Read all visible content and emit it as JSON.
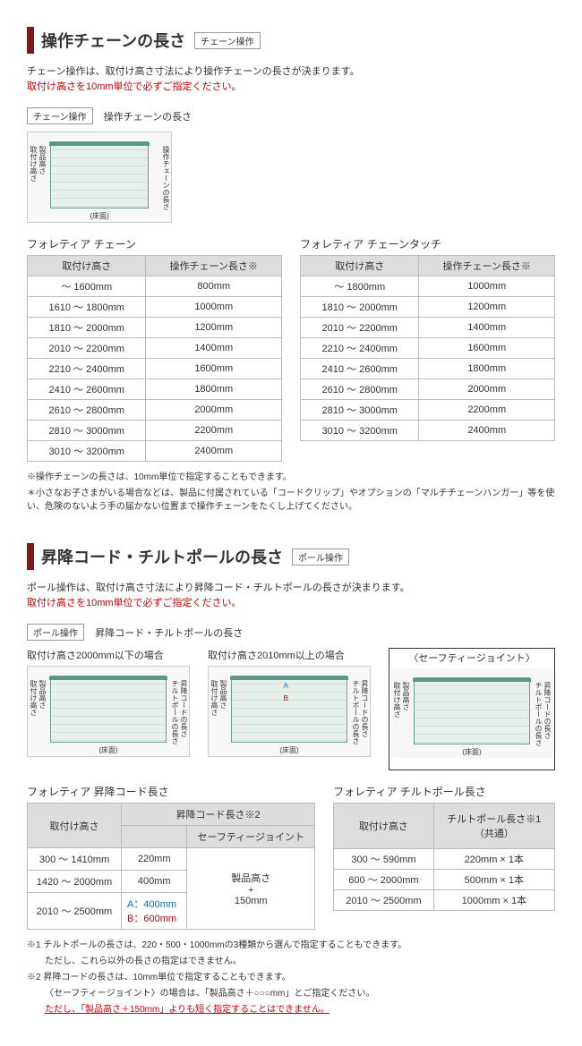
{
  "section1": {
    "title": "操作チェーンの長さ",
    "tag": "チェーン操作",
    "intro1": "チェーン操作は、取付け高さ寸法により操作チェーンの長さが決まります。",
    "intro2": "取付け高さを10mm単位で必ずご指定ください。",
    "sub_tag": "チェーン操作",
    "sub_label": "操作チェーンの長さ",
    "diagram": {
      "left1": "製品高さ",
      "left2": "取付け高さ",
      "right": "操作チェーンの長さ",
      "floor": "(床面)"
    },
    "tableA": {
      "title": "フォレティア チェーン",
      "h1": "取付け高さ",
      "h2": "操作チェーン長さ※",
      "rows": [
        [
          "～ 1600mm",
          "800mm"
        ],
        [
          "1610 ～ 1800mm",
          "1000mm"
        ],
        [
          "1810 ～ 2000mm",
          "1200mm"
        ],
        [
          "2010 ～ 2200mm",
          "1400mm"
        ],
        [
          "2210 ～ 2400mm",
          "1600mm"
        ],
        [
          "2410 ～ 2600mm",
          "1800mm"
        ],
        [
          "2610 ～ 2800mm",
          "2000mm"
        ],
        [
          "2810 ～ 3000mm",
          "2200mm"
        ],
        [
          "3010 ～ 3200mm",
          "2400mm"
        ]
      ]
    },
    "tableB": {
      "title": "フォレティア チェーンタッチ",
      "h1": "取付け高さ",
      "h2": "操作チェーン長さ※",
      "rows": [
        [
          "～ 1800mm",
          "1000mm"
        ],
        [
          "1810 ～ 2000mm",
          "1200mm"
        ],
        [
          "2010 ～ 2200mm",
          "1400mm"
        ],
        [
          "2210 ～ 2400mm",
          "1600mm"
        ],
        [
          "2410 ～ 2600mm",
          "1800mm"
        ],
        [
          "2610 ～ 2800mm",
          "2000mm"
        ],
        [
          "2810 ～ 3000mm",
          "2200mm"
        ],
        [
          "3010 ～ 3200mm",
          "2400mm"
        ]
      ]
    },
    "note1": "※操作チェーンの長さは、10mm単位で指定することもできます。",
    "note2": "＊小さなお子さまがいる場合などは、製品に付属されている「コードクリップ」やオプションの「マルチチェーンハンガー」等を使い、危険のないよう手の届かない位置まで操作チェーンをたくし上げてください。"
  },
  "section2": {
    "title": "昇降コード・チルトポールの長さ",
    "tag": "ポール操作",
    "intro1": "ポール操作は、取付け高さ寸法により昇降コード・チルトポールの長さが決まります。",
    "intro2": "取付け高さを10mm単位で必ずご指定ください。",
    "sub_tag": "ポール操作",
    "sub_label": "昇降コード・チルトポールの長さ",
    "diag1_title": "取付け高さ2000mm以下の場合",
    "diag2_title": "取付け高さ2010mm以上の場合",
    "diag3_title": "〈セーフティージョイント〉",
    "diagram_labels": {
      "left1": "製品高さ",
      "left2": "取付け高さ",
      "right1": "チルトポールの長さ",
      "right2": "昇降コードの長さ",
      "floor": "(床面)"
    },
    "tableC": {
      "title": "フォレティア 昇降コード長さ",
      "h1": "取付け高さ",
      "h2": "昇降コード長さ※2",
      "h2b": "セーフティージョイント",
      "rows": [
        [
          "300 ～ 1410mm",
          "220mm"
        ],
        [
          "1420 ～ 2000mm",
          "400mm"
        ]
      ],
      "row3_h": "2010 ～ 2500mm",
      "row3_a": "A：400mm",
      "row3_b": "B：600mm",
      "merged": "製品高さ\n+\n150mm"
    },
    "tableD": {
      "title": "フォレティア チルトポール長さ",
      "h1": "取付け高さ",
      "h2": "チルトポール長さ※1\n（共通）",
      "rows": [
        [
          "300 ～ 590mm",
          "220mm × 1本"
        ],
        [
          "600 ～ 2000mm",
          "500mm × 1本"
        ],
        [
          "2010 ～ 2500mm",
          "1000mm × 1本"
        ]
      ]
    },
    "note1": "※1 チルトポールの長さは、220・500・1000mmの3種類から選んで指定することもできます。",
    "note1b": "ただし、これら以外の長さの指定はできません。",
    "note2": "※2 昇降コードの長さは、10mm単位で指定することもできます。",
    "note2b": "〈セーフティージョイント〉の場合は、「製品高さ＋○○○mm」とご指定ください。",
    "note2c": "ただし、「製品高さ＋150mm」よりも短く指定することはできません。"
  }
}
